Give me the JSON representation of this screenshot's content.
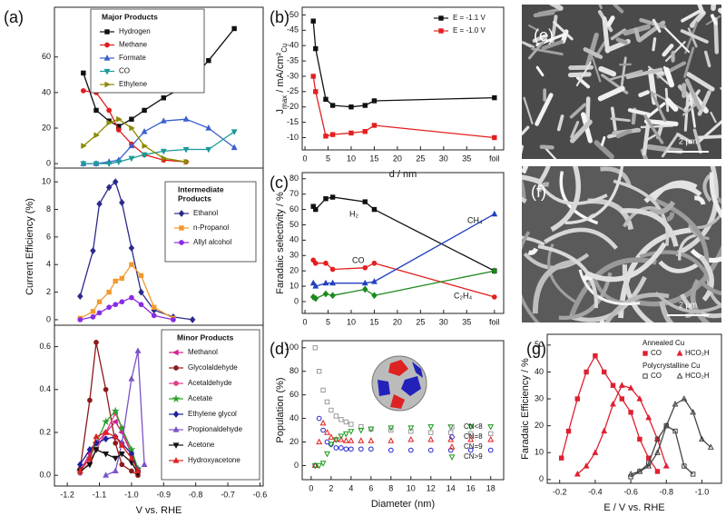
{
  "chart_data": [
    {
      "type": "line",
      "panel_label": "(a)",
      "legend_title": "Major Products",
      "x": [
        -1.15,
        -1.11,
        -1.07,
        -1.04,
        -1.0,
        -0.96,
        -0.9,
        -0.83,
        -0.76,
        -0.68
      ],
      "xlim": [
        -1.24,
        -0.59
      ],
      "ylim": [
        -2.5,
        88
      ],
      "yticks": [
        0,
        20,
        40,
        60
      ],
      "series": [
        {
          "name": "Hydrogen",
          "color": "#111111",
          "marker": "square",
          "values": [
            51,
            30,
            24,
            21,
            25,
            30,
            37,
            44,
            58,
            76
          ]
        },
        {
          "name": "Methane",
          "color": "#e31a1c",
          "marker": "circle",
          "values": [
            41,
            40,
            30,
            19,
            11,
            5,
            2,
            1,
            null,
            null
          ]
        },
        {
          "name": "Formate",
          "color": "#3a5fcd",
          "marker": "triangle",
          "values": [
            0,
            0,
            1,
            2,
            10,
            18,
            24,
            25,
            20,
            9
          ]
        },
        {
          "name": "CO",
          "color": "#1a9a9a",
          "marker": "triangle-down",
          "values": [
            0,
            0,
            0,
            1,
            3,
            5,
            7,
            8,
            8,
            18
          ]
        },
        {
          "name": "Ethylene",
          "color": "#8b8b00",
          "marker": "triangle-right",
          "values": [
            10,
            16,
            23,
            25,
            20,
            10,
            3,
            1,
            null,
            null
          ]
        }
      ]
    },
    {
      "type": "line",
      "legend_title": [
        "Intermediate",
        "Products"
      ],
      "y_label": "Current Efficiency (%)",
      "x": [
        -1.16,
        -1.12,
        -1.1,
        -1.07,
        -1.05,
        -1.03,
        -1.0,
        -0.97,
        -0.93,
        -0.87,
        -0.81
      ],
      "xlim": [
        -1.24,
        -0.59
      ],
      "ylim": [
        -0.4,
        11
      ],
      "yticks": [
        0,
        2,
        4,
        6,
        8,
        10
      ],
      "series": [
        {
          "name": "Ethanol",
          "color": "#2b2b8c",
          "marker": "diamond",
          "values": [
            1.7,
            5,
            8.4,
            9.6,
            10,
            8.5,
            5.2,
            2,
            0.7,
            0.2,
            0
          ]
        },
        {
          "name": "n-Propanol",
          "color": "#f29a2e",
          "marker": "square",
          "values": [
            0.1,
            0.6,
            1.3,
            2,
            2.8,
            3,
            4,
            3.2,
            0.9,
            0.1,
            null
          ]
        },
        {
          "name": "Allyl alcohol",
          "color": "#8a2be2",
          "marker": "circle",
          "values": [
            0,
            0.2,
            0.5,
            0.9,
            1.1,
            1.3,
            1.6,
            1.1,
            0.3,
            0,
            null
          ]
        }
      ]
    },
    {
      "type": "line",
      "legend_title": "Minor Products",
      "x_label": "V vs. RHE",
      "x": [
        -1.16,
        -1.13,
        -1.11,
        -1.08,
        -1.05,
        -1.03,
        -1.0,
        -0.98,
        -0.96
      ],
      "xlim": [
        -1.24,
        -0.59
      ],
      "xticks": [
        -1.2,
        -1.1,
        {
          "value": -1.0,
          "label": "-1.0"
        },
        -0.9,
        -0.8,
        -0.7,
        -0.6
      ],
      "ylim": [
        -0.05,
        0.7
      ],
      "yticks": [
        {
          "value": 0,
          "label": "0.0"
        },
        0.2,
        0.4,
        0.6
      ],
      "series": [
        {
          "name": "Methanol",
          "color": "#d02090",
          "marker": "triangle-left",
          "values": [
            0.02,
            0.1,
            0.15,
            0.2,
            0.25,
            0.2,
            0.1,
            0.02,
            null
          ]
        },
        {
          "name": "Glycolaldehyde",
          "color": "#8b1a1a",
          "marker": "circle",
          "values": [
            0.03,
            0.35,
            0.62,
            0.4,
            0.15,
            0.05,
            0.02,
            0,
            null
          ]
        },
        {
          "name": "Acetaldehyde",
          "color": "#e0408a",
          "marker": "circle",
          "values": [
            0.01,
            0.06,
            0.12,
            0.2,
            0.29,
            0.22,
            0.1,
            0.03,
            null
          ]
        },
        {
          "name": "Acetate",
          "color": "#2ca02c",
          "marker": "star",
          "values": [
            0.02,
            0.08,
            0.15,
            0.25,
            0.3,
            0.22,
            0.12,
            0.03,
            null
          ]
        },
        {
          "name": "Ethylene glycol",
          "color": "#1f1f9f",
          "marker": "diamond",
          "values": [
            0.05,
            0.12,
            0.15,
            0.17,
            0.18,
            0.15,
            0.1,
            0.02,
            null
          ]
        },
        {
          "name": "Propionaldehyde",
          "color": "#7b52c8",
          "marker": "triangle",
          "values": [
            null,
            null,
            null,
            0,
            0.02,
            0.15,
            0.45,
            0.58,
            0.05
          ]
        },
        {
          "name": "Acetone",
          "color": "#111111",
          "marker": "triangle-down",
          "values": [
            0.02,
            0.05,
            0.12,
            0.1,
            0.08,
            0.1,
            0.06,
            0.01,
            null
          ]
        },
        {
          "name": "Hydroxyacetone",
          "color": "#e02020",
          "marker": "triangle",
          "values": [
            0.02,
            0.08,
            0.18,
            0.2,
            0.18,
            0.14,
            0.08,
            0.02,
            null
          ]
        }
      ]
    },
    {
      "type": "line",
      "panel_label": "(b)",
      "x_label": "d / nm",
      "y_label": [
        "J",
        "max",
        " / mA/cm²",
        "Cu"
      ],
      "x": [
        1.8,
        2.3,
        4.5,
        6,
        10,
        13,
        15,
        41
      ],
      "xlim": [
        -0.6,
        43
      ],
      "xticks": [
        0,
        5,
        10,
        15,
        20,
        25,
        30,
        35,
        {
          "value": 41,
          "label": "foil"
        }
      ],
      "ylim": [
        -6,
        -52.5
      ],
      "yticks": [
        -50,
        -45,
        -40,
        -35,
        -30,
        -25,
        -20,
        -15,
        -10
      ],
      "series": [
        {
          "name": "E = -1.1 V",
          "color": "#111111",
          "marker": "square",
          "values": [
            -48,
            -39,
            -22.5,
            -20.5,
            -20,
            -20.5,
            -22,
            -23
          ]
        },
        {
          "name": "E = -1.0 V",
          "color": "#e32020",
          "marker": "square",
          "values": [
            -30,
            -25,
            -10.5,
            -11,
            -11.5,
            -12,
            -14,
            -10
          ]
        }
      ]
    },
    {
      "type": "line",
      "panel_label": "(c)",
      "y_label": "Faradaic selectivity / %",
      "series_labels": "inline",
      "x": [
        1.8,
        2.3,
        4.5,
        6,
        13,
        15,
        41
      ],
      "xlim": [
        -0.6,
        43
      ],
      "xticks": [
        0,
        5,
        10,
        15,
        20,
        25,
        30,
        35,
        {
          "value": 41,
          "label": "foil"
        }
      ],
      "ylim": [
        -7.7,
        84
      ],
      "yticks": [
        0,
        10,
        20,
        30,
        40,
        50,
        60,
        70,
        80
      ],
      "series": [
        {
          "name": "H₂",
          "color": "#111111",
          "marker": "square",
          "values": [
            62,
            60,
            67,
            68,
            65,
            60,
            20
          ]
        },
        {
          "name": "CO",
          "color": "#e32020",
          "marker": "circle",
          "values": [
            27,
            25,
            25,
            21,
            22,
            25,
            3
          ]
        },
        {
          "name": "CH₄",
          "color": "#2040c0",
          "marker": "triangle",
          "values": [
            12,
            10,
            12,
            12,
            12,
            13,
            57
          ]
        },
        {
          "name": "C₂H₄",
          "color": "#1a8a1a",
          "marker": "diamond",
          "values": [
            3,
            2,
            5,
            4,
            8,
            4,
            20
          ]
        }
      ]
    },
    {
      "type": "scatter",
      "panel_label": "(d)",
      "x_label": "Diameter (nm)",
      "y_label": "Population (%)",
      "x": [
        0.4,
        0.8,
        1.2,
        1.6,
        2,
        2.5,
        3,
        3.5,
        4,
        5,
        6,
        8,
        10,
        12,
        14,
        16,
        18
      ],
      "xlim": [
        -0.9,
        19.3
      ],
      "xticks": [
        0,
        2,
        4,
        6,
        8,
        10,
        12,
        14,
        16,
        18
      ],
      "ylim": [
        -12,
        106
      ],
      "yticks": [
        0,
        20,
        40,
        60,
        80,
        100
      ],
      "series": [
        {
          "name": "CN<8",
          "color": "#999999",
          "marker": "square",
          "open": true,
          "values": [
            100,
            80,
            64,
            54,
            47,
            42,
            39,
            37,
            35,
            33,
            31,
            30,
            29,
            28,
            28,
            27,
            27
          ]
        },
        {
          "name": "CN=8",
          "color": "#2222cc",
          "marker": "circle",
          "open": true,
          "values": [
            0,
            40,
            30,
            20,
            18,
            15,
            15,
            14,
            14,
            14,
            14,
            13,
            13,
            13,
            13,
            13,
            13
          ]
        },
        {
          "name": "CN=9",
          "color": "#e02020",
          "marker": "triangle",
          "open": true,
          "values": [
            0,
            20,
            36,
            28,
            24,
            22,
            22,
            21,
            21,
            21,
            21,
            21,
            22,
            22,
            22,
            22,
            22
          ]
        },
        {
          "name": "CN>9",
          "color": "#1a9a1a",
          "marker": "triangle-down",
          "open": true,
          "values": [
            0,
            0,
            2,
            10,
            18,
            22,
            25,
            27,
            29,
            30,
            31,
            32,
            32,
            33,
            33,
            33,
            33
          ]
        }
      ]
    },
    {
      "type": "image",
      "panel_label": "(e)",
      "scale_bar": "2 μm",
      "texture": "rods"
    },
    {
      "type": "image",
      "panel_label": "(f)",
      "scale_bar": "2 μm",
      "texture": "wires"
    },
    {
      "type": "line",
      "panel_label": "(g)",
      "x_label": "E / V vs. RHE",
      "y_label": "Faradaic Efficiency / %",
      "legend_titles": [
        "Annealed Cu",
        "Polycrystalline Cu"
      ],
      "xlim": [
        -0.13,
        -1.11
      ],
      "xticks": [
        -0.2,
        -0.4,
        -0.6,
        -0.8,
        {
          "value": -1.0,
          "label": "-1.0"
        }
      ],
      "ylim": [
        -1.4,
        54
      ],
      "yticks": [
        0,
        10,
        20,
        30,
        40,
        50
      ],
      "series": [
        {
          "name": "CO",
          "color": "#e02030",
          "marker": "square",
          "x": [
            -0.21,
            -0.25,
            -0.3,
            -0.35,
            -0.4,
            -0.45,
            -0.5,
            -0.55,
            -0.6,
            -0.65,
            -0.7,
            -0.75
          ],
          "values": [
            8,
            18,
            30,
            40,
            46,
            40,
            35,
            30,
            25,
            15,
            8,
            3
          ]
        },
        {
          "name": "HCO₂H",
          "color": "#e02030",
          "marker": "triangle",
          "x": [
            -0.3,
            -0.35,
            -0.4,
            -0.45,
            -0.5,
            -0.55,
            -0.6,
            -0.65,
            -0.7,
            -0.75,
            -0.8
          ],
          "values": [
            2,
            5,
            10,
            18,
            28,
            35,
            34,
            30,
            23,
            15,
            5
          ]
        },
        {
          "name": "CO",
          "color": "#444444",
          "marker": "square",
          "open": true,
          "x": [
            -0.6,
            -0.65,
            -0.7,
            -0.75,
            -0.8,
            -0.85,
            -0.9,
            -0.95
          ],
          "values": [
            1,
            3,
            6,
            15,
            20,
            18,
            5,
            2
          ]
        },
        {
          "name": "HCO₂H",
          "color": "#444444",
          "marker": "triangle",
          "open": true,
          "x": [
            -0.6,
            -0.65,
            -0.7,
            -0.75,
            -0.8,
            -0.85,
            -0.9,
            -0.95,
            -1.0,
            -1.05
          ],
          "values": [
            2,
            3,
            5,
            10,
            20,
            28,
            30,
            25,
            15,
            12
          ]
        }
      ]
    }
  ]
}
